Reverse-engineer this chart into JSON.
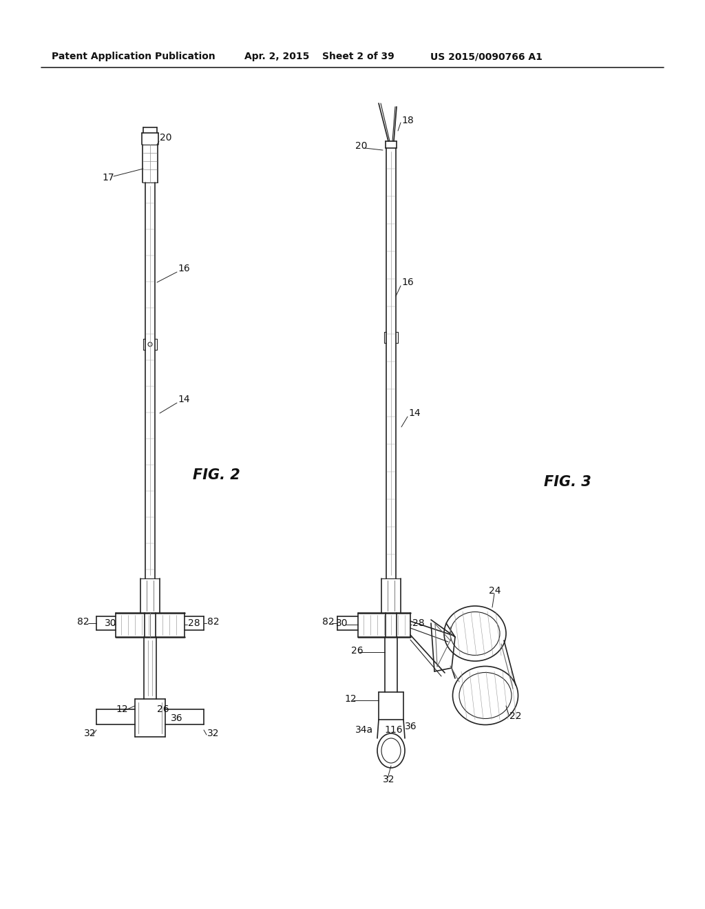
{
  "background_color": "#ffffff",
  "header_text": "Patent Application Publication",
  "header_date": "Apr. 2, 2015",
  "header_sheet": "Sheet 2 of 39",
  "header_patent": "US 2015/0090766 A1",
  "fig2_label": "FIG. 2",
  "fig3_label": "FIG. 3",
  "fig_label_fontsize": 15
}
